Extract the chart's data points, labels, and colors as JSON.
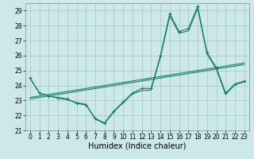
{
  "xlabel": "Humidex (Indice chaleur)",
  "background_color": "#cce8e8",
  "grid_color": "#aacccc",
  "line_color": "#1a7a6a",
  "hours": [
    0,
    1,
    2,
    3,
    4,
    5,
    6,
    7,
    8,
    9,
    10,
    11,
    12,
    13,
    14,
    15,
    16,
    17,
    18,
    19,
    20,
    21,
    22,
    23
  ],
  "main_series": [
    24.5,
    23.5,
    23.3,
    23.2,
    23.1,
    22.8,
    22.7,
    21.8,
    21.5,
    22.3,
    22.9,
    23.5,
    23.8,
    23.8,
    26.0,
    28.8,
    27.6,
    27.8,
    29.3,
    26.2,
    25.2,
    23.5,
    24.1,
    24.3
  ],
  "line2": [
    24.5,
    23.5,
    23.3,
    23.15,
    23.05,
    22.85,
    22.75,
    21.75,
    21.45,
    22.25,
    22.85,
    23.45,
    23.65,
    23.7,
    25.9,
    28.65,
    27.5,
    27.65,
    29.15,
    26.1,
    25.1,
    23.4,
    24.05,
    24.25
  ],
  "trend1": [
    23.2,
    23.3,
    23.4,
    23.5,
    23.6,
    23.7,
    23.8,
    23.9,
    24.0,
    24.1,
    24.2,
    24.3,
    24.4,
    24.5,
    24.6,
    24.7,
    24.8,
    24.9,
    25.0,
    25.1,
    25.2,
    25.3,
    25.4,
    25.5
  ],
  "trend2": [
    23.1,
    23.2,
    23.3,
    23.4,
    23.5,
    23.6,
    23.7,
    23.8,
    23.9,
    24.0,
    24.1,
    24.2,
    24.3,
    24.4,
    24.5,
    24.6,
    24.7,
    24.8,
    24.9,
    25.0,
    25.1,
    25.2,
    25.3,
    25.4
  ],
  "ylim": [
    21.0,
    29.5
  ],
  "yticks": [
    21,
    22,
    23,
    24,
    25,
    26,
    27,
    28,
    29
  ],
  "xlim": [
    -0.5,
    23.5
  ],
  "xticks": [
    0,
    1,
    2,
    3,
    4,
    5,
    6,
    7,
    8,
    9,
    10,
    11,
    12,
    13,
    14,
    15,
    16,
    17,
    18,
    19,
    20,
    21,
    22,
    23
  ],
  "tick_fontsize": 5.5,
  "label_fontsize": 7
}
